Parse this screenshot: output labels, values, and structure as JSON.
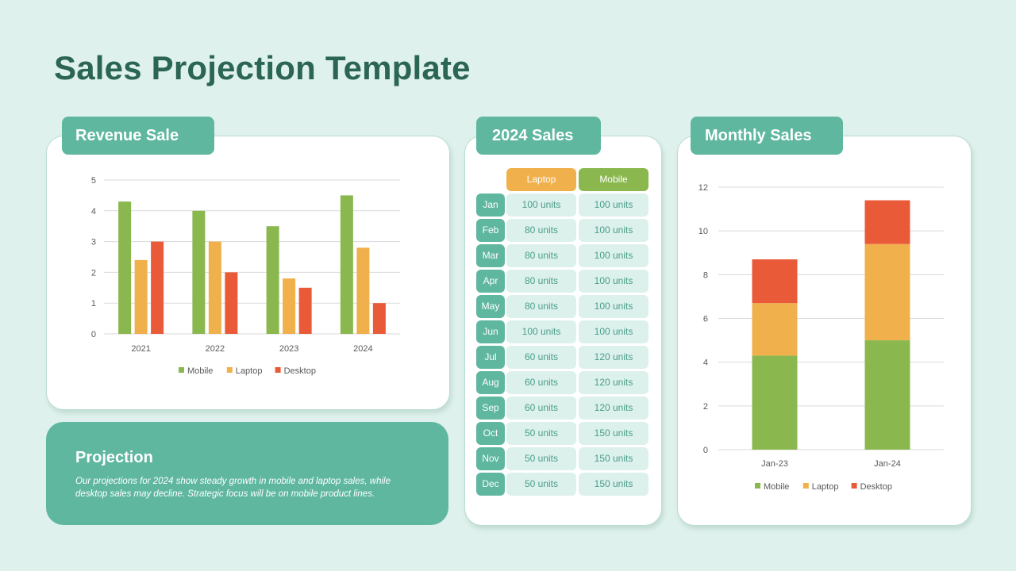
{
  "page": {
    "title": "Sales Projection Template"
  },
  "revenue": {
    "tab_label": "Revenue Sale"
  },
  "sales2024": {
    "tab_label": "2024 Sales",
    "headers": [
      "Laptop",
      "Mobile"
    ],
    "header_colors": [
      "#f0b04b",
      "#8ab84e"
    ],
    "rows": [
      {
        "month": "Jan",
        "laptop": "100 units",
        "mobile": "100 units"
      },
      {
        "month": "Feb",
        "laptop": "80 units",
        "mobile": "100 units"
      },
      {
        "month": "Mar",
        "laptop": "80 units",
        "mobile": "100 units"
      },
      {
        "month": "Apr",
        "laptop": "80 units",
        "mobile": "100 units"
      },
      {
        "month": "May",
        "laptop": "80 units",
        "mobile": "100 units"
      },
      {
        "month": "Jun",
        "laptop": "100 units",
        "mobile": "100 units"
      },
      {
        "month": "Jul",
        "laptop": "60 units",
        "mobile": "120 units"
      },
      {
        "month": "Aug",
        "laptop": "60 units",
        "mobile": "120 units"
      },
      {
        "month": "Sep",
        "laptop": "60 units",
        "mobile": "120 units"
      },
      {
        "month": "Oct",
        "laptop": "50 units",
        "mobile": "150 units"
      },
      {
        "month": "Nov",
        "laptop": "50 units",
        "mobile": "150 units"
      },
      {
        "month": "Dec",
        "laptop": "50 units",
        "mobile": "150 units"
      }
    ]
  },
  "monthly": {
    "tab_label": "Monthly Sales"
  },
  "projection": {
    "title": "Projection",
    "text": "Our projections for 2024 show steady growth in mobile and laptop sales, while desktop sales may decline. Strategic focus will be on mobile product lines."
  },
  "colors": {
    "mobile": "#8ab84e",
    "laptop": "#f0b04b",
    "desktop": "#e95a38",
    "accent": "#5fb7a0",
    "title": "#2b6553"
  },
  "chart_data": [
    {
      "type": "bar",
      "categories": [
        "2021",
        "2022",
        "2023",
        "2024"
      ],
      "series": [
        {
          "name": "Mobile",
          "values": [
            4.3,
            4.0,
            3.5,
            4.5
          ]
        },
        {
          "name": "Laptop",
          "values": [
            2.4,
            3.0,
            1.8,
            2.8
          ]
        },
        {
          "name": "Desktop",
          "values": [
            3.0,
            2.0,
            1.5,
            1.0
          ]
        }
      ],
      "yticks": [
        "0",
        "1",
        "2",
        "3",
        "4",
        "5"
      ],
      "ylim": [
        0,
        5
      ],
      "grid": true,
      "legend": "bottom"
    },
    {
      "type": "stacked-bar",
      "categories": [
        "Jan-23",
        "Jan-24"
      ],
      "series": [
        {
          "name": "Mobile",
          "values": [
            4.3,
            5.0
          ]
        },
        {
          "name": "Laptop",
          "values": [
            2.4,
            4.4
          ]
        },
        {
          "name": "Desktop",
          "values": [
            2.0,
            2.0
          ]
        }
      ],
      "yticks": [
        "0",
        "2",
        "4",
        "6",
        "8",
        "10",
        "12"
      ],
      "ylim": [
        0,
        12
      ],
      "grid": true,
      "legend": "bottom"
    }
  ]
}
